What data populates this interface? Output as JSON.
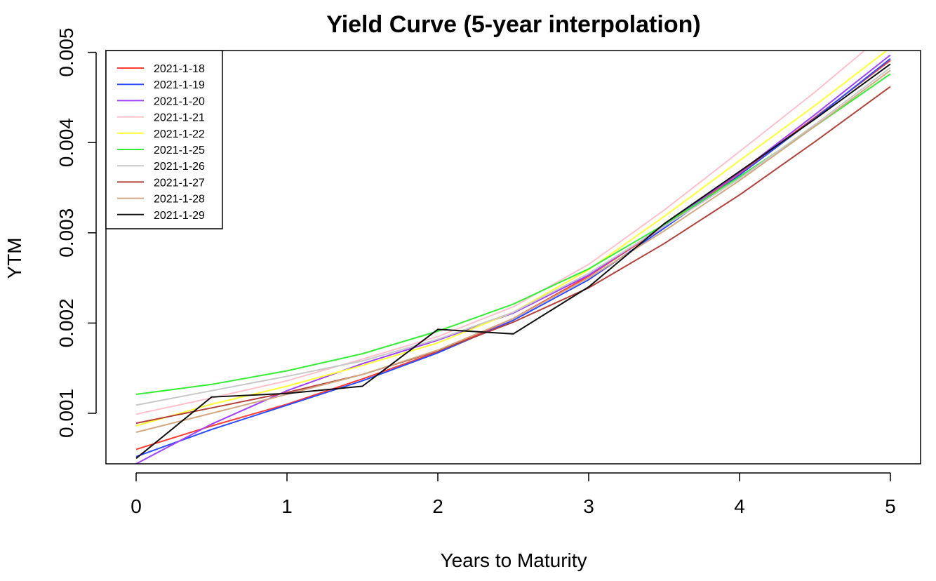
{
  "chart_data": {
    "type": "line",
    "title": "Yield Curve (5-year interpolation)",
    "xlabel": "Years to Maturity",
    "ylabel": "YTM",
    "xlim": [
      -0.2,
      5.2
    ],
    "ylim": [
      0.00044,
      0.00502
    ],
    "xticks": [
      0,
      1,
      2,
      3,
      4,
      5
    ],
    "yticks": [
      0.001,
      0.002,
      0.003,
      0.004,
      0.005
    ],
    "ytick_labels": [
      "0.001",
      "0.002",
      "0.003",
      "0.004",
      "0.005"
    ],
    "grid": false,
    "legend_position": "top-left",
    "x": [
      0,
      0.5,
      1,
      1.5,
      2,
      2.5,
      3,
      3.5,
      4,
      4.5,
      5
    ],
    "series": [
      {
        "name": "2021-1-18",
        "color": "#ff3b30",
        "values": [
          0.0006,
          0.00086,
          0.0011,
          0.00138,
          0.00168,
          0.00205,
          0.00252,
          0.00307,
          0.00366,
          0.00428,
          0.00491
        ]
      },
      {
        "name": "2021-1-19",
        "color": "#2a4bff",
        "values": [
          0.00052,
          0.00082,
          0.00109,
          0.00136,
          0.00167,
          0.00203,
          0.00248,
          0.00305,
          0.00364,
          0.00427,
          0.00493
        ]
      },
      {
        "name": "2021-1-20",
        "color": "#a040ff",
        "values": [
          0.00044,
          0.00088,
          0.00125,
          0.00155,
          0.00181,
          0.00211,
          0.00253,
          0.00308,
          0.00367,
          0.00431,
          0.00497
        ]
      },
      {
        "name": "2021-1-21",
        "color": "#ffc0cb",
        "values": [
          0.00099,
          0.00117,
          0.00136,
          0.0016,
          0.00185,
          0.00218,
          0.00265,
          0.00325,
          0.0039,
          0.00456,
          0.00526
        ]
      },
      {
        "name": "2021-1-22",
        "color": "#ffff33",
        "values": [
          0.00086,
          0.0011,
          0.0013,
          0.00153,
          0.00178,
          0.00212,
          0.00259,
          0.00318,
          0.0038,
          0.00441,
          0.00505
        ]
      },
      {
        "name": "2021-1-25",
        "color": "#33ee33",
        "values": [
          0.00121,
          0.00132,
          0.00147,
          0.00166,
          0.00191,
          0.00221,
          0.0026,
          0.00309,
          0.00362,
          0.00418,
          0.00476
        ]
      },
      {
        "name": "2021-1-26",
        "color": "#c8c8c8",
        "values": [
          0.00109,
          0.00125,
          0.00141,
          0.00158,
          0.00182,
          0.00212,
          0.00255,
          0.00307,
          0.0036,
          0.0042,
          0.00483
        ]
      },
      {
        "name": "2021-1-27",
        "color": "#b5403a",
        "values": [
          0.00089,
          0.00106,
          0.00123,
          0.00143,
          0.00169,
          0.00201,
          0.00239,
          0.00288,
          0.00342,
          0.00401,
          0.00462
        ]
      },
      {
        "name": "2021-1-28",
        "color": "#d2a883",
        "values": [
          0.00079,
          0.001,
          0.00121,
          0.00143,
          0.0017,
          0.00205,
          0.0025,
          0.00302,
          0.00358,
          0.00418,
          0.0048
        ]
      },
      {
        "name": "2021-1-29",
        "color": "#111111",
        "values": [
          0.0005,
          0.00118,
          0.00122,
          0.0013,
          0.00193,
          0.00188,
          0.0024,
          0.0031,
          0.00368,
          0.00426,
          0.00487
        ]
      }
    ]
  }
}
